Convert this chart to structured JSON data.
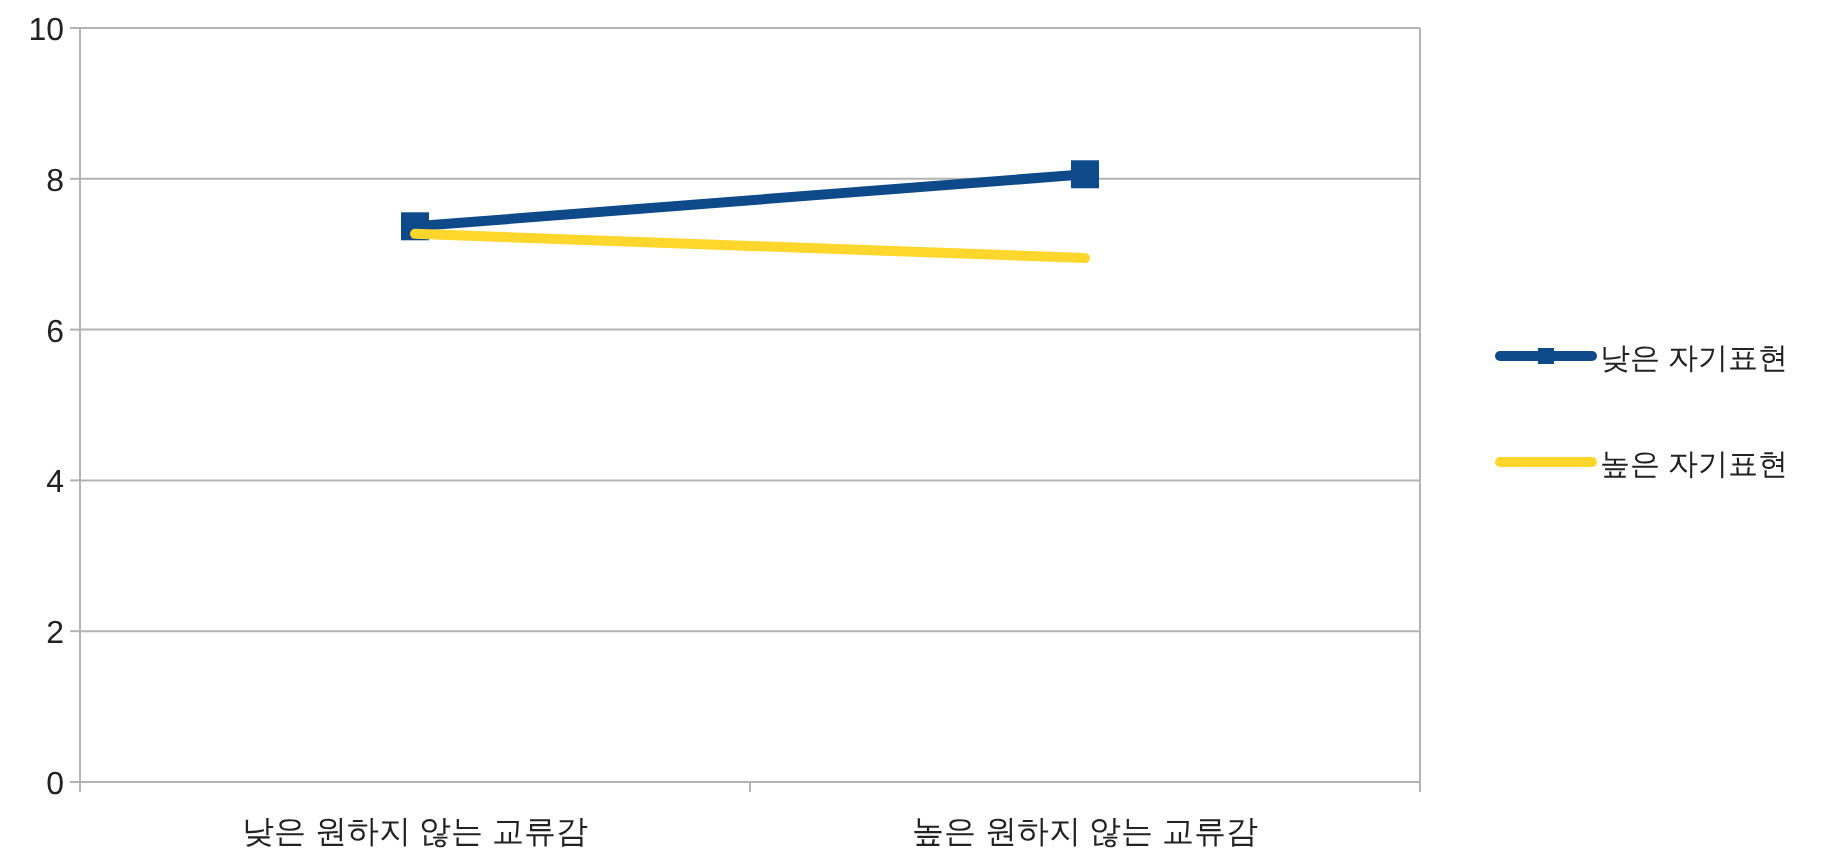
{
  "chart_data": {
    "type": "line",
    "categories": [
      "낮은 원하지 않는 교류감",
      "높은 원하지 않는 교류감"
    ],
    "series": [
      {
        "name": "낮은 자기표현",
        "color": "#0e4a8a",
        "values": [
          7.37,
          8.06
        ],
        "marker": "square"
      },
      {
        "name": "높은 자기표현",
        "color": "#ffd62b",
        "values": [
          7.27,
          6.95
        ],
        "marker": "none"
      }
    ],
    "ylim": [
      0,
      10
    ],
    "yticks": [
      0,
      2,
      4,
      6,
      8,
      10
    ],
    "grid": "y",
    "legend": "right"
  }
}
